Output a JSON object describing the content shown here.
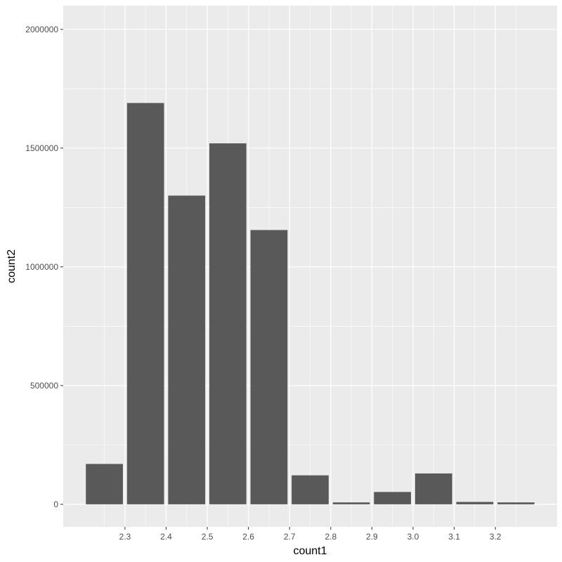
{
  "chart_data": {
    "type": "bar",
    "title": "",
    "xlabel": "count1",
    "ylabel": "count2",
    "x_centers": [
      2.25,
      2.35,
      2.45,
      2.55,
      2.65,
      2.75,
      2.85,
      2.95,
      3.05,
      3.15,
      3.25
    ],
    "bar_width": 0.09,
    "values": [
      170000,
      1690000,
      1300000,
      1520000,
      1155000,
      122000,
      8000,
      52000,
      130000,
      10000,
      8000
    ],
    "xlim": [
      2.15,
      3.35
    ],
    "ylim": [
      -95000,
      2100000
    ],
    "x_ticks": [
      2.3,
      2.4,
      2.5,
      2.6,
      2.7,
      2.8,
      2.9,
      3.0,
      3.1,
      3.2
    ],
    "x_tick_labels": [
      "2.3",
      "2.4",
      "2.5",
      "2.6",
      "2.7",
      "2.8",
      "2.9",
      "3.0",
      "3.1",
      "3.2"
    ],
    "y_ticks": [
      0,
      500000,
      1000000,
      1500000,
      2000000
    ],
    "y_tick_labels": [
      "0",
      "500000",
      "1000000",
      "1500000",
      "2000000"
    ],
    "grid": true,
    "legend": "none",
    "colors": {
      "panel": "#ebebeb",
      "grid_major": "#ffffff",
      "bar": "#595959",
      "tick_text": "#4d4d4d",
      "tick_mark": "#333333",
      "title_text": "#000000"
    }
  }
}
